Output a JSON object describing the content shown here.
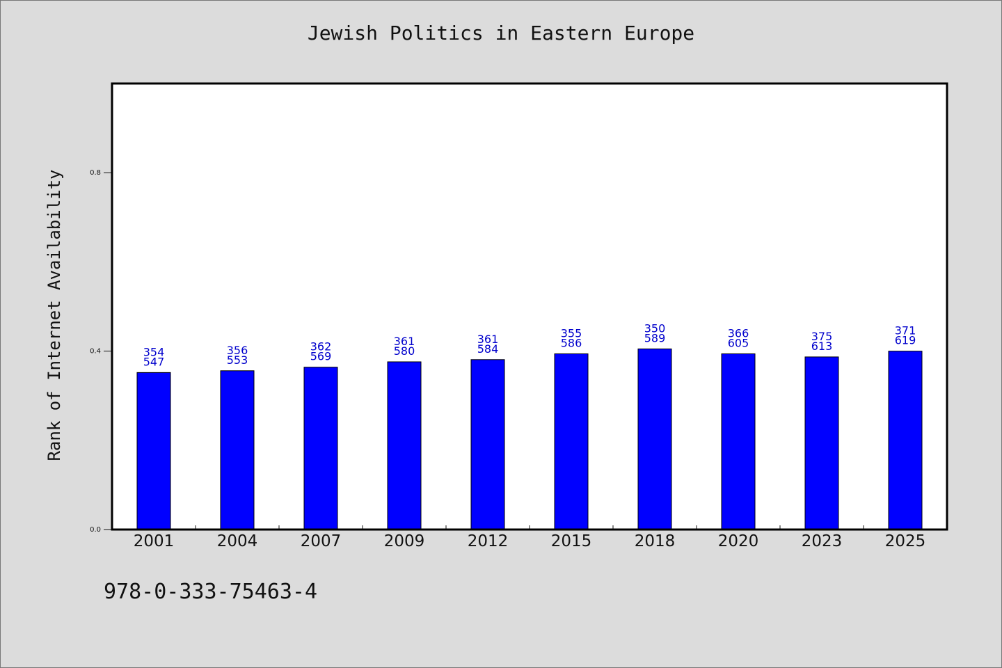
{
  "chart_data": {
    "type": "bar",
    "title": "Jewish Politics in Eastern Europe",
    "xlabel": "",
    "ylabel": "Rank of Internet Availability",
    "ylim": [
      0,
      1
    ],
    "yticks": [
      0.0,
      0.4,
      0.8
    ],
    "ytick_labels": [
      "0.0",
      "0.4",
      "0.8"
    ],
    "grid": false,
    "bar_color": "#0000ff",
    "label_color": "#0000cc",
    "categories": [
      "2001",
      "2004",
      "2007",
      "2009",
      "2012",
      "2015",
      "2018",
      "2020",
      "2023",
      "2025"
    ],
    "values": [
      0.352,
      0.356,
      0.364,
      0.376,
      0.381,
      0.394,
      0.405,
      0.394,
      0.387,
      0.4
    ],
    "data_labels": [
      [
        "354",
        "547"
      ],
      [
        "356",
        "553"
      ],
      [
        "362",
        "569"
      ],
      [
        "361",
        "580"
      ],
      [
        "361",
        "584"
      ],
      [
        "355",
        "586"
      ],
      [
        "350",
        "589"
      ],
      [
        "366",
        "605"
      ],
      [
        "375",
        "613"
      ],
      [
        "371",
        "619"
      ]
    ]
  },
  "footer": {
    "code": "978-0-333-75463-4"
  }
}
